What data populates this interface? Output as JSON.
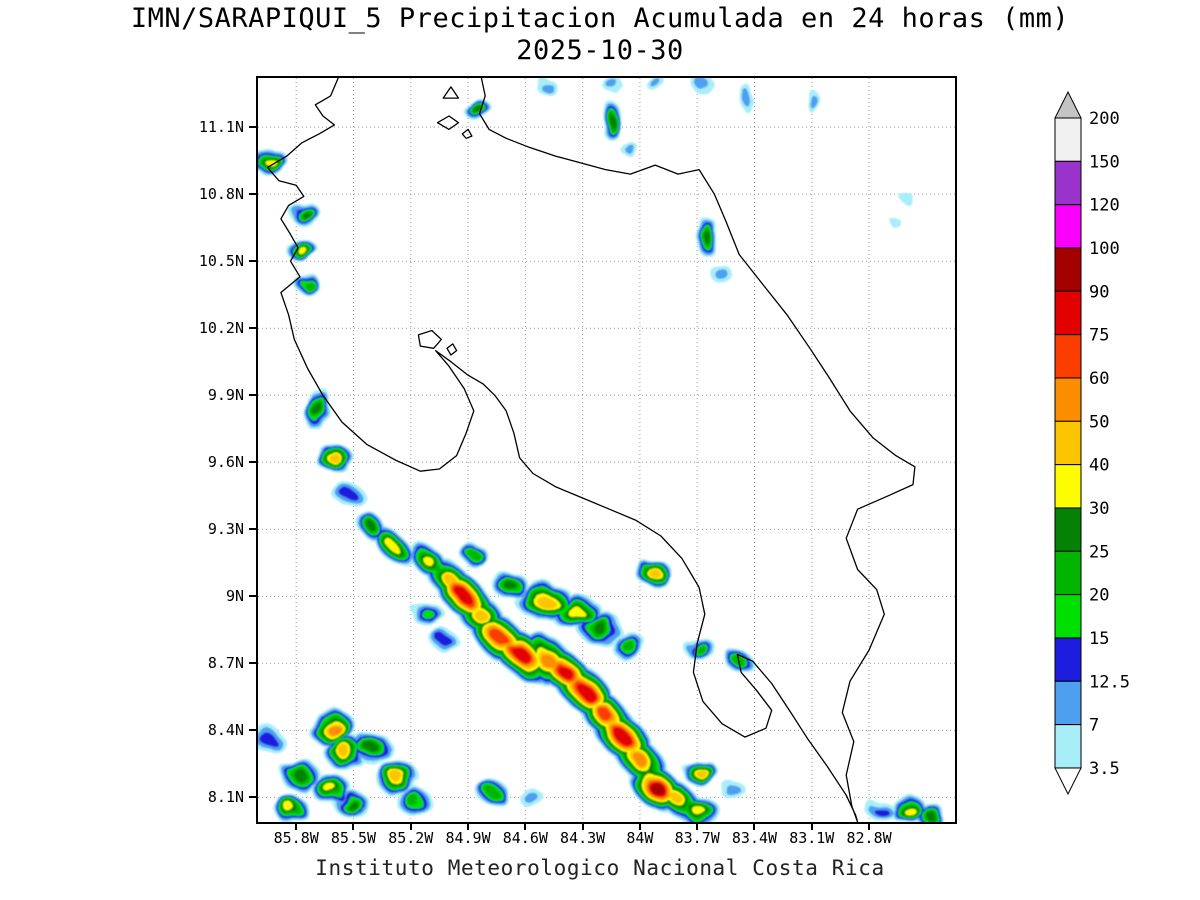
{
  "header": {
    "title": "IMN/SARAPIQUI_5 Precipitacion Acumulada en 24 horas (mm)",
    "date": "2025-10-30"
  },
  "footer": {
    "credit": "Instituto Meteorologico Nacional Costa Rica"
  },
  "chart_data": {
    "type": "heatmap",
    "title": "IMN/SARAPIQUI_5 Precipitacion Acumulada en 24 horas (mm)",
    "date": "2025-10-30",
    "units": "mm",
    "grid": "dotted",
    "legend_position": "right",
    "lon_range": [
      -86.0,
      -82.35
    ],
    "lat_range": [
      7.99,
      11.32
    ],
    "lon_ticks": [
      {
        "v": -85.8,
        "label": "85.8W"
      },
      {
        "v": -85.5,
        "label": "85.5W"
      },
      {
        "v": -85.2,
        "label": "85.2W"
      },
      {
        "v": -84.9,
        "label": "84.9W"
      },
      {
        "v": -84.6,
        "label": "84.6W"
      },
      {
        "v": -84.3,
        "label": "84.3W"
      },
      {
        "v": -84.0,
        "label": "84W"
      },
      {
        "v": -83.7,
        "label": "83.7W"
      },
      {
        "v": -83.4,
        "label": "83.4W"
      },
      {
        "v": -83.1,
        "label": "83.1W"
      },
      {
        "v": -82.8,
        "label": "82.8W"
      }
    ],
    "lat_ticks": [
      {
        "v": 11.1,
        "label": "11.1N"
      },
      {
        "v": 10.8,
        "label": "10.8N"
      },
      {
        "v": 10.5,
        "label": "10.5N"
      },
      {
        "v": 10.2,
        "label": "10.2N"
      },
      {
        "v": 9.9,
        "label": "9.9N"
      },
      {
        "v": 9.6,
        "label": "9.6N"
      },
      {
        "v": 9.3,
        "label": "9.3N"
      },
      {
        "v": 9.0,
        "label": "9N"
      },
      {
        "v": 8.7,
        "label": "8.7N"
      },
      {
        "v": 8.4,
        "label": "8.4N"
      },
      {
        "v": 8.1,
        "label": "8.1N"
      }
    ],
    "legend": {
      "levels": [
        3.5,
        7,
        12.5,
        15,
        20,
        25,
        30,
        40,
        50,
        60,
        75,
        90,
        100,
        120,
        150,
        200
      ],
      "colors": [
        "#a8eef8",
        "#4f9ff0",
        "#1c1cdf",
        "#00e000",
        "#00b400",
        "#058205",
        "#fdfd00",
        "#fdc500",
        "#fd8d00",
        "#fc3d00",
        "#e30000",
        "#a50000",
        "#fb00fb",
        "#9a33cc",
        "#f0f0f0",
        "#c4c4c4"
      ],
      "under_color": "#ffffff",
      "labels_desc": [
        "200",
        "150",
        "120",
        "100",
        "90",
        "75",
        "60",
        "50",
        "40",
        "30",
        "25",
        "20",
        "15",
        "12.5",
        "7",
        "3.5"
      ]
    },
    "cells_format": [
      "lon",
      "lat",
      "mm",
      "radius_px",
      "rot_deg",
      "x_scale",
      "y_scale"
    ],
    "cells": [
      [
        -85.94,
        10.95,
        30,
        16
      ],
      [
        -85.76,
        10.72,
        25,
        14
      ],
      [
        -85.77,
        10.55,
        30,
        14
      ],
      [
        -85.74,
        10.4,
        20,
        12
      ],
      [
        -85.69,
        9.84,
        25,
        16,
        20,
        0.8,
        1.3
      ],
      [
        -85.6,
        9.62,
        40,
        17
      ],
      [
        -85.53,
        9.46,
        12.5,
        13
      ],
      [
        -85.4,
        9.31,
        25,
        16,
        42,
        1.25,
        0.75
      ],
      [
        -85.29,
        9.22,
        30,
        18,
        42,
        1.25,
        0.75
      ],
      [
        -85.11,
        9.16,
        30,
        20,
        42,
        1.25,
        0.72
      ],
      [
        -84.99,
        9.07,
        40,
        24,
        42,
        1.25,
        0.72
      ],
      [
        -84.93,
        9.01,
        75,
        28,
        42,
        1.2,
        0.72
      ],
      [
        -84.84,
        8.92,
        40,
        26,
        42,
        1.2,
        0.75
      ],
      [
        -84.73,
        8.81,
        60,
        30,
        42,
        1.2,
        0.72
      ],
      [
        -84.62,
        8.74,
        75,
        30,
        42,
        1.2,
        0.72
      ],
      [
        -84.48,
        8.71,
        50,
        30,
        42,
        1.15,
        0.75
      ],
      [
        -84.39,
        8.66,
        75,
        28,
        42,
        1.2,
        0.72
      ],
      [
        -84.29,
        8.58,
        75,
        30,
        42,
        1.2,
        0.72
      ],
      [
        -84.18,
        8.47,
        60,
        28,
        42,
        1.2,
        0.72
      ],
      [
        -84.09,
        8.37,
        75,
        30,
        42,
        1.2,
        0.72
      ],
      [
        -84.0,
        8.27,
        50,
        26,
        42,
        1.2,
        0.75
      ],
      [
        -83.91,
        8.14,
        90,
        28,
        42,
        1.2,
        0.75
      ],
      [
        -83.8,
        8.09,
        40,
        24,
        42,
        1.25,
        0.7
      ],
      [
        -83.69,
        8.04,
        30,
        18
      ],
      [
        -84.5,
        8.98,
        40,
        24,
        0,
        1.2,
        0.8
      ],
      [
        -84.34,
        8.93,
        30,
        22,
        0,
        1.2,
        0.8
      ],
      [
        -84.21,
        8.86,
        25,
        20
      ],
      [
        -84.06,
        8.78,
        20,
        16
      ],
      [
        -85.11,
        8.92,
        15,
        14
      ],
      [
        -85.02,
        8.8,
        12.5,
        12
      ],
      [
        -84.68,
        9.05,
        25,
        16
      ],
      [
        -84.86,
        9.18,
        20,
        12
      ],
      [
        -83.92,
        9.1,
        40,
        16
      ],
      [
        -83.69,
        8.77,
        20,
        14
      ],
      [
        -83.48,
        8.71,
        20,
        12
      ],
      [
        -85.61,
        8.41,
        50,
        22
      ],
      [
        -85.54,
        8.3,
        40,
        20
      ],
      [
        -85.78,
        8.2,
        25,
        18
      ],
      [
        -85.62,
        8.14,
        30,
        18
      ],
      [
        -85.4,
        8.32,
        25,
        18
      ],
      [
        -85.27,
        8.19,
        40,
        20
      ],
      [
        -85.51,
        8.07,
        25,
        16
      ],
      [
        -85.18,
        8.08,
        20,
        16
      ],
      [
        -85.83,
        8.05,
        30,
        16
      ],
      [
        -85.95,
        8.36,
        12.5,
        14
      ],
      [
        -84.78,
        8.13,
        20,
        14
      ],
      [
        -84.56,
        8.09,
        7,
        11
      ],
      [
        -83.68,
        8.21,
        40,
        16
      ],
      [
        -83.51,
        8.13,
        7,
        11
      ],
      [
        -82.6,
        8.05,
        30,
        17
      ],
      [
        -82.48,
        8.02,
        25,
        14
      ],
      [
        -82.74,
        8.04,
        12.5,
        12
      ],
      [
        -83.65,
        10.61,
        25,
        15,
        0,
        0.85,
        1.3
      ],
      [
        -83.57,
        10.44,
        7,
        10
      ],
      [
        -84.15,
        11.13,
        25,
        14,
        0,
        0.8,
        1.4
      ],
      [
        -84.13,
        11.28,
        7,
        9
      ],
      [
        -84.05,
        11.0,
        7,
        8
      ],
      [
        -84.85,
        11.18,
        25,
        13
      ],
      [
        -84.5,
        11.29,
        7,
        9
      ],
      [
        -83.92,
        11.3,
        7,
        9
      ],
      [
        -83.67,
        11.29,
        7,
        10
      ],
      [
        -83.44,
        11.23,
        7,
        9,
        0,
        0.7,
        1.5
      ],
      [
        -83.1,
        11.22,
        7,
        8,
        0,
        0.7,
        1.5
      ],
      [
        -82.61,
        10.79,
        3.5,
        6
      ],
      [
        -82.67,
        10.68,
        3.5,
        5
      ]
    ],
    "coastline": [
      {
        "name": "costa-rica-nicaragua-outline",
        "closed": false,
        "pts": [
          [
            -85.58,
            11.32
          ],
          [
            -85.62,
            11.24
          ],
          [
            -85.7,
            11.2
          ],
          [
            -85.66,
            11.15
          ],
          [
            -85.6,
            11.11
          ],
          [
            -85.68,
            11.07
          ],
          [
            -85.77,
            11.03
          ],
          [
            -85.85,
            10.97
          ],
          [
            -85.95,
            10.92
          ],
          [
            -85.89,
            10.86
          ],
          [
            -85.8,
            10.84
          ],
          [
            -85.76,
            10.79
          ],
          [
            -85.84,
            10.75
          ],
          [
            -85.88,
            10.69
          ],
          [
            -85.83,
            10.62
          ],
          [
            -85.79,
            10.56
          ],
          [
            -85.83,
            10.5
          ],
          [
            -85.78,
            10.43
          ],
          [
            -85.88,
            10.36
          ],
          [
            -85.84,
            10.26
          ],
          [
            -85.81,
            10.15
          ],
          [
            -85.74,
            10.02
          ],
          [
            -85.66,
            9.9
          ],
          [
            -85.56,
            9.78
          ],
          [
            -85.43,
            9.68
          ],
          [
            -85.28,
            9.61
          ],
          [
            -85.15,
            9.56
          ],
          [
            -85.05,
            9.57
          ],
          [
            -84.96,
            9.63
          ],
          [
            -84.91,
            9.73
          ],
          [
            -84.87,
            9.83
          ],
          [
            -84.92,
            9.93
          ],
          [
            -85.0,
            10.03
          ],
          [
            -85.07,
            10.1
          ],
          [
            -84.99,
            10.05
          ],
          [
            -84.9,
            9.99
          ],
          [
            -84.82,
            9.95
          ],
          [
            -84.76,
            9.9
          ],
          [
            -84.7,
            9.83
          ],
          [
            -84.66,
            9.73
          ],
          [
            -84.63,
            9.62
          ],
          [
            -84.56,
            9.55
          ],
          [
            -84.44,
            9.49
          ],
          [
            -84.3,
            9.44
          ],
          [
            -84.16,
            9.39
          ],
          [
            -84.02,
            9.34
          ],
          [
            -83.89,
            9.27
          ],
          [
            -83.78,
            9.17
          ],
          [
            -83.69,
            9.04
          ],
          [
            -83.66,
            8.92
          ],
          [
            -83.7,
            8.79
          ],
          [
            -83.72,
            8.66
          ],
          [
            -83.67,
            8.53
          ],
          [
            -83.57,
            8.43
          ],
          [
            -83.45,
            8.37
          ],
          [
            -83.34,
            8.41
          ],
          [
            -83.31,
            8.49
          ],
          [
            -83.39,
            8.58
          ],
          [
            -83.47,
            8.66
          ],
          [
            -83.49,
            8.74
          ],
          [
            -83.41,
            8.71
          ],
          [
            -83.31,
            8.61
          ],
          [
            -83.21,
            8.48
          ],
          [
            -83.12,
            8.36
          ],
          [
            -83.02,
            8.24
          ],
          [
            -82.92,
            8.11
          ],
          [
            -82.87,
            8.02
          ],
          [
            -82.86,
            7.99
          ],
          [
            -82.89,
            8.06
          ],
          [
            -82.92,
            8.2
          ],
          [
            -82.88,
            8.35
          ],
          [
            -82.94,
            8.48
          ],
          [
            -82.9,
            8.62
          ],
          [
            -82.8,
            8.76
          ],
          [
            -82.72,
            8.92
          ],
          [
            -82.76,
            9.03
          ],
          [
            -82.86,
            9.12
          ],
          [
            -82.92,
            9.26
          ],
          [
            -82.86,
            9.39
          ],
          [
            -82.7,
            9.45
          ],
          [
            -82.57,
            9.5
          ],
          [
            -82.56,
            9.58
          ],
          [
            -82.66,
            9.63
          ],
          [
            -82.78,
            9.71
          ],
          [
            -82.9,
            9.83
          ],
          [
            -83.01,
            9.98
          ],
          [
            -83.11,
            10.11
          ],
          [
            -83.23,
            10.26
          ],
          [
            -83.36,
            10.4
          ],
          [
            -83.48,
            10.53
          ],
          [
            -83.55,
            10.68
          ],
          [
            -83.61,
            10.8
          ],
          [
            -83.69,
            10.91
          ],
          [
            -83.8,
            10.89
          ],
          [
            -83.92,
            10.93
          ],
          [
            -84.05,
            10.89
          ],
          [
            -84.18,
            10.91
          ],
          [
            -84.31,
            10.94
          ],
          [
            -84.44,
            10.97
          ],
          [
            -84.58,
            11.01
          ],
          [
            -84.7,
            11.05
          ],
          [
            -84.79,
            11.09
          ],
          [
            -84.84,
            11.16
          ],
          [
            -84.81,
            11.24
          ],
          [
            -84.83,
            11.32
          ]
        ]
      },
      {
        "name": "lake-island-1",
        "closed": true,
        "pts": [
          [
            -85.03,
            11.23
          ],
          [
            -84.99,
            11.28
          ],
          [
            -84.95,
            11.23
          ]
        ]
      },
      {
        "name": "lake-island-2",
        "closed": true,
        "pts": [
          [
            -85.06,
            11.12
          ],
          [
            -85.0,
            11.15
          ],
          [
            -84.95,
            11.12
          ],
          [
            -85.0,
            11.09
          ]
        ]
      },
      {
        "name": "lake-island-3",
        "closed": true,
        "pts": [
          [
            -84.93,
            11.07
          ],
          [
            -84.9,
            11.09
          ],
          [
            -84.88,
            11.06
          ],
          [
            -84.91,
            11.05
          ]
        ]
      },
      {
        "name": "inland-lake-1",
        "closed": true,
        "pts": [
          [
            -85.16,
            10.17
          ],
          [
            -85.09,
            10.19
          ],
          [
            -85.04,
            10.15
          ],
          [
            -85.08,
            10.11
          ],
          [
            -85.15,
            10.12
          ]
        ]
      },
      {
        "name": "inland-lake-2",
        "closed": true,
        "pts": [
          [
            -85.01,
            10.11
          ],
          [
            -84.98,
            10.13
          ],
          [
            -84.96,
            10.1
          ],
          [
            -84.99,
            10.08
          ]
        ]
      }
    ]
  }
}
